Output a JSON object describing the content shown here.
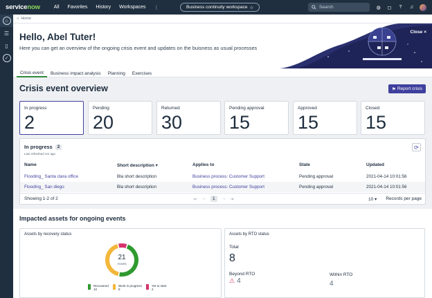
{
  "topnav": {
    "logo_prefix": "service",
    "logo_suffix": "now",
    "menu": [
      "All",
      "Favorites",
      "History",
      "Workspaces"
    ],
    "more_icon": "⋮",
    "workspace_pill": "Business continuity workspace",
    "search_placeholder": "Search"
  },
  "crumb": {
    "label": "Home"
  },
  "banner": {
    "greeting": "Hello, Abel Tuter!",
    "subtitle": "Here you can get an overview of the ongoing crisis event and updates on the buisness as usual processes",
    "close_label": "Close"
  },
  "tabs": [
    "Crisis event",
    "Business impact analysis",
    "Planning",
    "Exercises"
  ],
  "overview": {
    "title": "Crisis event overview",
    "report_label": "Report crisis"
  },
  "cards": [
    {
      "label": "In progress",
      "value": "2"
    },
    {
      "label": "Pending",
      "value": "20"
    },
    {
      "label": "Returned",
      "value": "30"
    },
    {
      "label": "Pending approval",
      "value": "15"
    },
    {
      "label": "Approved",
      "value": "15"
    },
    {
      "label": "Closed",
      "value": "15"
    }
  ],
  "list": {
    "title": "In progress",
    "count": "2",
    "refreshed": "Last refreshed 1m ago",
    "headers": [
      "Name",
      "Short description",
      "Applies to",
      "State",
      "Updated"
    ],
    "rows": [
      {
        "name": "Flooding_ Santa clara office",
        "desc": "Bla short description",
        "applies": "Business process: Customer Support",
        "state": "Pending approval",
        "updated": "2021-04-14 10:01:56"
      },
      {
        "name": "Flooding_ San diego",
        "desc": "Bla short description",
        "applies": "Business process: Customer Support",
        "state": "Pending approval",
        "updated": "2021-04-14 10:01:56"
      }
    ],
    "showing": "Showing 1-2 of 2",
    "page": "1",
    "per_page": "10",
    "per_page_label": "Records per page"
  },
  "impacted": {
    "title": "Impacted assets for ongoing events",
    "recovery": {
      "title": "Assets by recovery status",
      "total": "21",
      "total_label": "Assets",
      "legend": [
        {
          "label": "Recovered",
          "value": "10",
          "color": "#2f9a2f"
        },
        {
          "label": "Work in progress",
          "value": "9",
          "color": "#f3b73a"
        },
        {
          "label": "Yet to start",
          "value": "2",
          "color": "#d6336c"
        }
      ]
    },
    "rto": {
      "title": "Assets by RTO status",
      "total_label": "Total",
      "total": "8",
      "beyond_label": "Beyond RTO",
      "beyond": "4",
      "within_label": "Within RTO",
      "within": "4"
    }
  },
  "colors": {
    "nav": "#1f2f3f",
    "accent": "#3f3f9e",
    "tab_active": "#2e8a3c"
  }
}
